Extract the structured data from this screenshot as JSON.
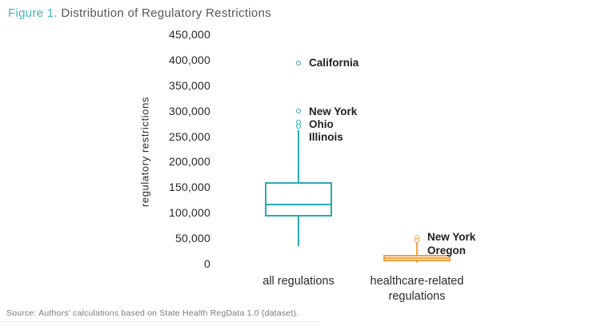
{
  "title": {
    "prefix": "Figure 1.",
    "text": " Distribution of Regulatory Restrictions"
  },
  "source": "Source: Authors' calculations based on State Health RegData 1.0 (dataset).",
  "colors": {
    "teal": "#2aa8b0",
    "orange": "#f5a040",
    "title_prefix": "#41b6ba",
    "title_text": "#55575b",
    "text_dark": "#1f1e21",
    "source_gray": "#797a7e"
  },
  "chart_data": {
    "type": "boxplot",
    "title": "Figure 1. Distribution of Regulatory Restrictions",
    "ylabel": "regulatory restrictions",
    "xlabel": "",
    "ylim": [
      0,
      450000
    ],
    "ytick_step": 50000,
    "ytick_labels": [
      "0",
      "50,000",
      "100,000",
      "150,000",
      "200,000",
      "250,000",
      "300,000",
      "350,000",
      "400,000",
      "450,000"
    ],
    "grid": false,
    "legend": "none",
    "groups": [
      {
        "label": "all regulations",
        "color": "#2aa8b0",
        "stats": {
          "whisker_low": 35000,
          "q1": 92000,
          "median": 116000,
          "q3": 160000,
          "whisker_high": 262000
        },
        "outliers": [
          {
            "state": "California",
            "value": 394000
          },
          {
            "state": "New York",
            "value": 299000
          },
          {
            "state": "Ohio",
            "value": 277000
          },
          {
            "state": "Illinois",
            "value": 270000
          }
        ]
      },
      {
        "label": "healthcare-related regulations",
        "color": "#f5a040",
        "stats": {
          "whisker_low": 1000,
          "q1": 5000,
          "median": 11000,
          "q3": 17000,
          "whisker_high": 40000
        },
        "outliers": [
          {
            "state": "New York",
            "value": 52000
          },
          {
            "state": "Oregon",
            "value": 45000
          }
        ]
      }
    ]
  }
}
